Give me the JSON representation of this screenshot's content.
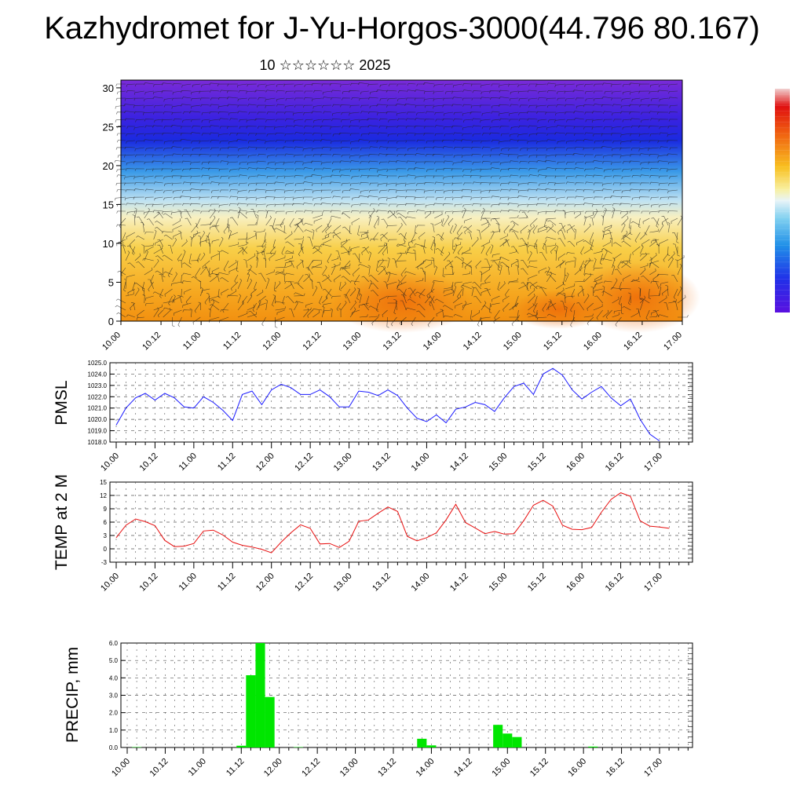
{
  "title": "Kazhydromet for J-Yu-Horgos-3000(44.796 80.167)",
  "subtitle": "10 ☆☆☆☆☆☆ 2025",
  "chart_data": [
    {
      "type": "heatmap",
      "name": "cross-section",
      "x_ticks": [
        "10.00",
        "10.12",
        "11.00",
        "11.12",
        "12.00",
        "12.12",
        "13.00",
        "13.12",
        "14.00",
        "14.12",
        "15.00",
        "15.12",
        "16.00",
        "16.12",
        "17.00"
      ],
      "ylim": [
        0,
        31
      ],
      "y_ticks": [
        0,
        5,
        10,
        15,
        20,
        25,
        30
      ],
      "colorbar": true,
      "colors": [
        "#6a1fd8",
        "#1a2ae0",
        "#3a9ae8",
        "#cfe6f0",
        "#f5e9a0",
        "#f8c234",
        "#f29010"
      ]
    },
    {
      "type": "line",
      "ylabel": "PMSL",
      "color": "#1a1aff",
      "x_ticks": [
        "10.00",
        "10.12",
        "11.00",
        "11.12",
        "12.00",
        "12.12",
        "13.00",
        "13.12",
        "14.00",
        "14.12",
        "15.00",
        "15.12",
        "16.00",
        "16.12",
        "17.00"
      ],
      "ylim": [
        1018.0,
        1025.0
      ],
      "y_ticks": [
        "1018.0",
        "1019.0",
        "1020.0",
        "1021.0",
        "1022.0",
        "1023.0",
        "1024.0",
        "1025.0"
      ],
      "values": [
        1019.5,
        1021.0,
        1021.9,
        1022.3,
        1021.7,
        1022.3,
        1021.9,
        1021.1,
        1021.0,
        1022.0,
        1021.5,
        1020.8,
        1019.9,
        1022.2,
        1022.5,
        1021.3,
        1022.6,
        1023.1,
        1022.8,
        1022.2,
        1022.2,
        1022.6,
        1022.0,
        1021.1,
        1021.1,
        1022.5,
        1022.4,
        1022.1,
        1022.6,
        1022.1,
        1021.0,
        1020.1,
        1019.8,
        1020.4,
        1019.7,
        1020.9,
        1021.1,
        1021.5,
        1021.3,
        1020.7,
        1021.9,
        1022.9,
        1023.2,
        1022.2,
        1024.0,
        1024.5,
        1023.9,
        1022.6,
        1021.8,
        1022.4,
        1022.9,
        1021.9,
        1021.2,
        1021.8,
        1020.0,
        1018.7,
        1018.1
      ]
    },
    {
      "type": "line",
      "ylabel": "TEMP at 2 M",
      "color": "#e81010",
      "x_ticks": [
        "10.00",
        "10.12",
        "11.00",
        "11.12",
        "12.00",
        "12.12",
        "13.00",
        "13.12",
        "14.00",
        "14.12",
        "15.00",
        "15.12",
        "16.00",
        "16.12",
        "17.00"
      ],
      "ylim": [
        -3,
        15
      ],
      "y_ticks": [
        "-3",
        "0",
        "3",
        "6",
        "9",
        "12",
        "15"
      ],
      "values": [
        2.5,
        5.3,
        6.7,
        6.1,
        5.2,
        1.9,
        0.5,
        0.6,
        1.2,
        4.0,
        4.2,
        3.1,
        1.5,
        0.8,
        0.4,
        -0.1,
        -0.9,
        1.5,
        3.6,
        5.4,
        4.6,
        1.1,
        1.2,
        0.3,
        1.7,
        6.2,
        6.5,
        8.0,
        9.4,
        8.4,
        2.8,
        1.8,
        2.5,
        3.6,
        6.5,
        10.0,
        5.9,
        4.7,
        3.4,
        3.9,
        3.3,
        3.4,
        6.3,
        9.8,
        10.9,
        9.6,
        5.3,
        4.4,
        4.3,
        4.8,
        8.2,
        11.1,
        12.6,
        11.8,
        6.3,
        5.1,
        4.9,
        4.6
      ]
    },
    {
      "type": "bar",
      "ylabel": "PRECIP, mm",
      "color": "#00e600",
      "x_ticks": [
        "10.00",
        "10.12",
        "11.00",
        "11.12",
        "12.00",
        "12.12",
        "13.00",
        "13.12",
        "14.00",
        "14.12",
        "15.00",
        "15.12",
        "16.00",
        "16.12",
        "17.00"
      ],
      "ylim": [
        0.0,
        6.0
      ],
      "y_ticks": [
        "0.0",
        "1.0",
        "2.0",
        "3.0",
        "4.0",
        "5.0",
        "6.0"
      ],
      "values": [
        0.0,
        0.02,
        0.0,
        0.0,
        0.0,
        0.0,
        0.0,
        0.0,
        0.0,
        0.0,
        0.0,
        0.0,
        0.1,
        4.15,
        6.0,
        2.9,
        0.0,
        0.0,
        0.02,
        0.0,
        0.0,
        0.0,
        0.0,
        0.0,
        0.0,
        0.0,
        0.0,
        0.0,
        0.0,
        0.0,
        0.0,
        0.5,
        0.12,
        0.0,
        0.0,
        0.0,
        0.0,
        0.0,
        0.0,
        1.3,
        0.8,
        0.6,
        0.0,
        0.0,
        0.0,
        0.0,
        0.0,
        0.0,
        0.0,
        0.05,
        0.0,
        0.0,
        0.0,
        0.0,
        0.0,
        0.0,
        0.0
      ]
    }
  ]
}
